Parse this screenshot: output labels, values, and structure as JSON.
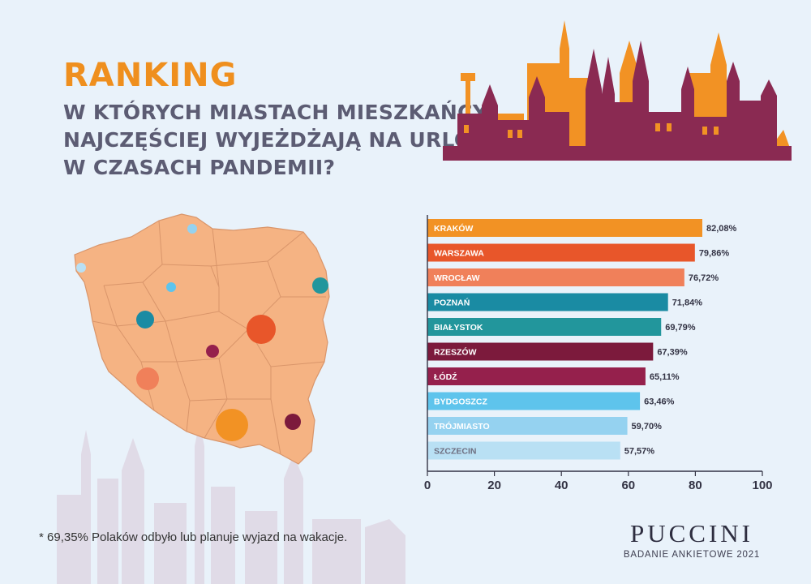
{
  "header": {
    "title": "RANKING",
    "subtitle_lines": [
      "W KTÓRYCH MIASTACH MIESZKAŃCY",
      "NAJCZĘŚCIEJ WYJEŻDŻAJĄ NA URLOP",
      "W CZASACH PANDEMII?"
    ]
  },
  "chart_data": {
    "type": "bar",
    "orientation": "horizontal",
    "categories": [
      "KRAKÓW",
      "WARSZAWA",
      "WROCŁAW",
      "POZNAŃ",
      "BIAŁYSTOK",
      "RZESZÓW",
      "ŁÓDŹ",
      "BYDGOSZCZ",
      "TRÓJMIASTO",
      "SZCZECIN"
    ],
    "values": [
      82.08,
      79.86,
      76.72,
      71.84,
      69.79,
      67.39,
      65.11,
      63.46,
      59.7,
      57.57
    ],
    "value_labels": [
      "82,08%",
      "79,86%",
      "76,72%",
      "71,84%",
      "69,79%",
      "67,39%",
      "65,11%",
      "63,46%",
      "59,70%",
      "57,57%"
    ],
    "bar_colors": [
      "#f29224",
      "#e8562a",
      "#f0805a",
      "#1a8ba3",
      "#22969c",
      "#7c1a3c",
      "#95204c",
      "#5ec4ec",
      "#95d2f0",
      "#b9e0f4"
    ],
    "label_colors": [
      "#ffffff",
      "#ffffff",
      "#ffffff",
      "#ffffff",
      "#ffffff",
      "#ffffff",
      "#ffffff",
      "#ffffff",
      "#ffffff",
      "#6e6e80"
    ],
    "xlim": [
      0,
      100
    ],
    "xticks": [
      0,
      20,
      40,
      60,
      80,
      100
    ],
    "grid": false
  },
  "map": {
    "land_color": "#f5b383",
    "markers": [
      {
        "city": "KRAKÓW",
        "color": "#f29224"
      },
      {
        "city": "WARSZAWA",
        "color": "#e8562a"
      },
      {
        "city": "WROCŁAW",
        "color": "#f0805a"
      },
      {
        "city": "POZNAŃ",
        "color": "#1a8ba3"
      },
      {
        "city": "BIAŁYSTOK",
        "color": "#22969c"
      },
      {
        "city": "RZESZÓW",
        "color": "#7c1a3c"
      },
      {
        "city": "ŁÓDŹ",
        "color": "#95204c"
      },
      {
        "city": "BYDGOSZCZ",
        "color": "#5ec4ec"
      },
      {
        "city": "TRÓJMIASTO",
        "color": "#95d2f0"
      },
      {
        "city": "SZCZECIN",
        "color": "#b9e0f4"
      }
    ]
  },
  "footnote": "* 69,35% Polaków odbyło lub planuje wyjazd na wakacje.",
  "brand": {
    "name": "PUCCINI",
    "subtitle": "BADANIE ANKIETOWE 2021"
  },
  "colors": {
    "background": "#e9f2fa",
    "accent_orange": "#ef8f1e",
    "skyline_orange": "#f29224",
    "skyline_plum": "#8a2a52",
    "text_gray": "#5c5c73"
  }
}
